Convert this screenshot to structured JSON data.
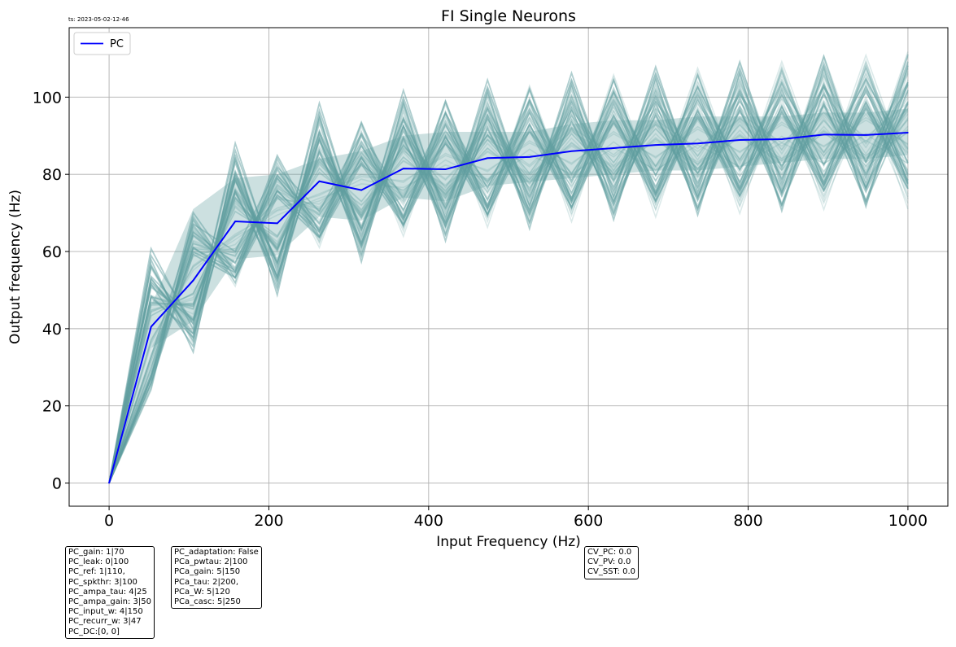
{
  "timestamp": "ts: 2023-05-02-12-46",
  "chart_data": {
    "type": "line",
    "title": "FI Single Neurons",
    "xlabel": "Input Frequency (Hz)",
    "ylabel": "Output frequency (Hz)",
    "xlim": [
      -50,
      1050
    ],
    "ylim": [
      -6,
      118
    ],
    "xticks": [
      0,
      200,
      400,
      600,
      800,
      1000
    ],
    "yticks": [
      0,
      20,
      40,
      60,
      80,
      100
    ],
    "grid": true,
    "legend": {
      "placement": "top-left",
      "entries": [
        "PC"
      ]
    },
    "x": [
      0,
      52.6,
      105.3,
      157.9,
      210.5,
      263.2,
      315.8,
      368.4,
      421.1,
      473.7,
      526.3,
      578.9,
      631.6,
      684.2,
      736.8,
      789.5,
      842.1,
      894.7,
      947.4,
      1000
    ],
    "series": [
      {
        "name": "PC",
        "color": "#0000ff",
        "values": [
          0,
          40.5,
          52.5,
          67.8,
          67.3,
          78.2,
          75.9,
          81.5,
          81.3,
          84.2,
          84.5,
          86.0,
          86.8,
          87.6,
          88.0,
          88.9,
          89.1,
          90.3,
          90.2,
          90.8
        ]
      }
    ],
    "band": {
      "color": "#5f9ea0",
      "upper": [
        0,
        46,
        71,
        79,
        80,
        84,
        86,
        90,
        91,
        91,
        91,
        93,
        94,
        94,
        95,
        95,
        95,
        96,
        96,
        97
      ],
      "lower": [
        0,
        35,
        42,
        58,
        59,
        69,
        68,
        74,
        73,
        77,
        78,
        79,
        80,
        81,
        81,
        82,
        83,
        84,
        84,
        85
      ]
    },
    "sample_color": "#5f9ea0"
  },
  "param_boxes": [
    {
      "lines": [
        "PC_gain: 1|70",
        "PC_leak: 0|100",
        "PC_ref: 1|110,",
        "PC_spkthr: 3|100",
        "PC_ampa_tau: 4|25",
        "PC_ampa_gain: 3|50",
        "PC_input_w: 4|150",
        "PC_recurr_w: 3|47",
        "PC_DC:[0, 0]"
      ]
    },
    {
      "lines": [
        "PC_adaptation: False",
        "PCa_pwtau: 2|100",
        "PCa_gain: 5|150",
        "PCa_tau: 2|200,",
        "PCa_W: 5|120",
        "PCa_casc: 5|250"
      ]
    },
    {
      "lines": [
        "CV_PC: 0.0",
        "CV_PV: 0.0",
        "CV_SST: 0.0"
      ]
    }
  ]
}
